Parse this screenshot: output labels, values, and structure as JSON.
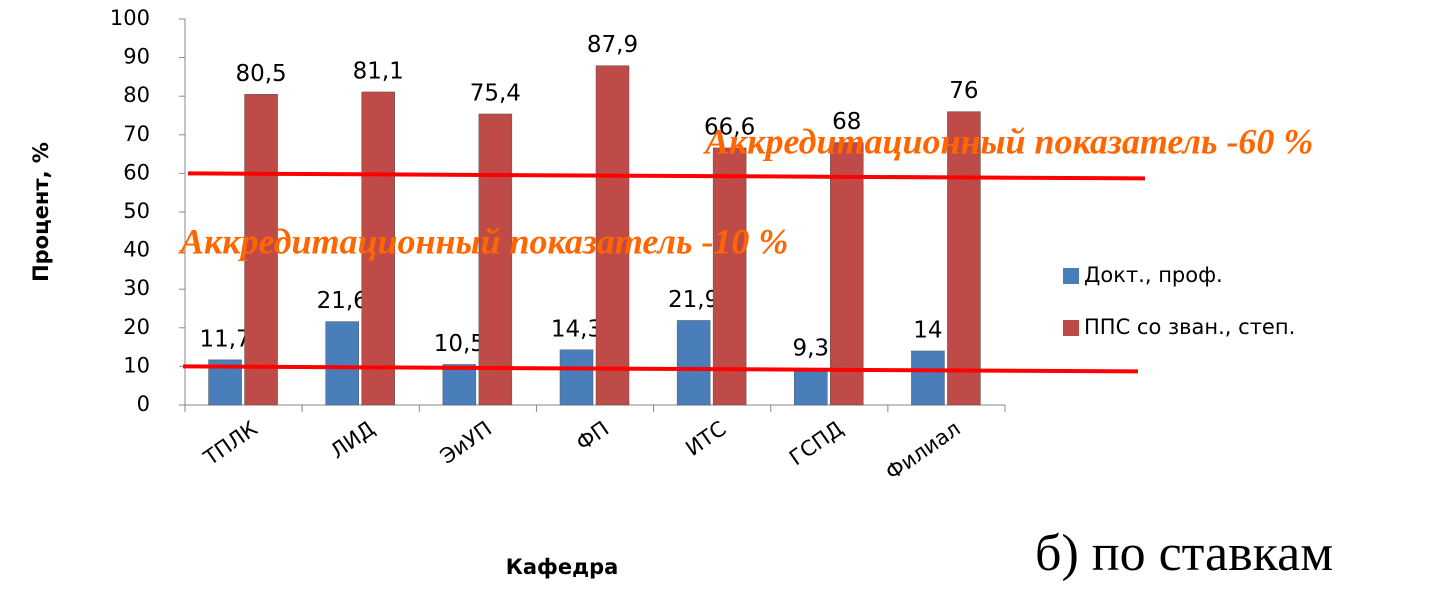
{
  "chart_data": {
    "type": "bar",
    "categories": [
      "ТПЛК",
      "ЛИД",
      "ЭиУП",
      "ФП",
      "ИТС",
      "ГСПД",
      "Филиал"
    ],
    "series": [
      {
        "name": "Докт., проф.",
        "color": "#4a7ebb",
        "values": [
          11.7,
          21.6,
          10.5,
          14.3,
          21.9,
          9.3,
          14
        ],
        "value_labels": [
          "11,7",
          "21,6",
          "10,5",
          "14,3",
          "21,9",
          "9,3",
          "14"
        ]
      },
      {
        "name": "ППС со зван., степ.",
        "color": "#be4b48",
        "values": [
          80.5,
          81.1,
          75.4,
          87.9,
          66.6,
          68,
          76
        ],
        "value_labels": [
          "80,5",
          "81,1",
          "75,4",
          "87,9",
          "66,6",
          "68",
          "76"
        ]
      }
    ],
    "ylim": [
      0,
      100
    ],
    "yticks": [
      0,
      10,
      20,
      30,
      40,
      50,
      60,
      70,
      80,
      90,
      100
    ],
    "ylabel": "Процент, %",
    "xlabel": "Кафедра",
    "legend": "right",
    "reference_lines": [
      {
        "value": 60,
        "label": "Аккредитационный показатель -60 %",
        "color": "#ff0000"
      },
      {
        "value": 10,
        "label": "Аккредитационный показатель -10 %",
        "color": "#ff0000"
      }
    ],
    "caption": "б) по ставкам"
  }
}
